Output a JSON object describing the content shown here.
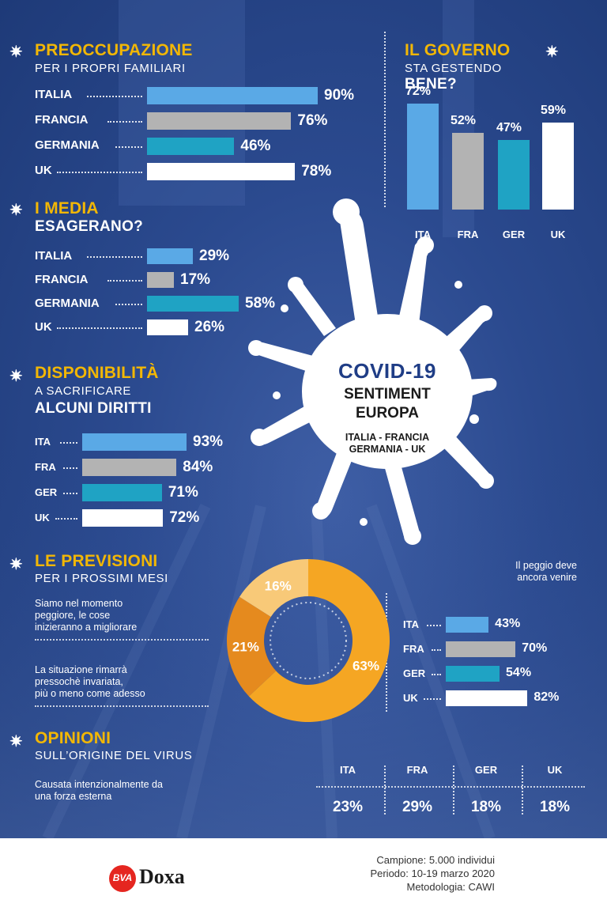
{
  "colors": {
    "ita": "#5aa9e6",
    "fra": "#b3b3b3",
    "ger": "#1fa3c4",
    "uk": "#ffffff",
    "accent": "#f2b705",
    "donut_main": "#f5a623",
    "donut_mid": "#e58a1e",
    "donut_light": "#f8c978"
  },
  "sections": {
    "preoccupazione": {
      "title": "PREOCCUPAZIONE",
      "subtitle": "PER I PROPRI FAMILIARI"
    },
    "governo": {
      "title": "IL GOVERNO",
      "subtitle": "STA GESTENDO",
      "subtitle_bold": "BENE?"
    },
    "media": {
      "title": "I MEDIA",
      "subtitle_bold": "ESAGERANO?"
    },
    "disponibilita": {
      "title": "DISPONIBILITÀ",
      "subtitle": "A SACRIFICARE",
      "subtitle_bold": "ALCUNI DIRITTI"
    },
    "previsioni": {
      "title": "LE PREVISIONI",
      "subtitle": "PER I PROSSIMI MESI"
    },
    "opinioni": {
      "title": "OPINIONI",
      "subtitle": "SULL’ORIGINE DEL VIRUS"
    }
  },
  "center": {
    "line1": "COVID-19",
    "line2": "SENTIMENT",
    "line3": "EUROPA",
    "line4": "ITALIA - FRANCIA",
    "line5": "GERMANIA - UK"
  },
  "chart_data": [
    {
      "id": "preoccupazione",
      "type": "bar",
      "orientation": "horizontal",
      "categories": [
        "ITALIA",
        "FRANCIA",
        "GERMANIA",
        "UK"
      ],
      "values": [
        90,
        76,
        46,
        78
      ],
      "labels": [
        "90%",
        "76%",
        "46%",
        "78%"
      ],
      "xlim": [
        0,
        100
      ]
    },
    {
      "id": "governo",
      "type": "bar",
      "orientation": "vertical",
      "categories": [
        "ITA",
        "FRA",
        "GER",
        "UK"
      ],
      "values": [
        72,
        52,
        47,
        59
      ],
      "labels": [
        "72%",
        "52%",
        "47%",
        "59%"
      ],
      "ylim": [
        0,
        100
      ]
    },
    {
      "id": "media",
      "type": "bar",
      "orientation": "horizontal",
      "categories": [
        "ITALIA",
        "FRANCIA",
        "GERMANIA",
        "UK"
      ],
      "values": [
        29,
        17,
        58,
        26
      ],
      "labels": [
        "29%",
        "17%",
        "58%",
        "26%"
      ],
      "xlim": [
        0,
        100
      ]
    },
    {
      "id": "disponibilita",
      "type": "bar",
      "orientation": "horizontal",
      "categories": [
        "ITA",
        "FRA",
        "GER",
        "UK"
      ],
      "values": [
        93,
        84,
        71,
        72
      ],
      "labels": [
        "93%",
        "84%",
        "71%",
        "72%"
      ],
      "xlim": [
        0,
        100
      ]
    },
    {
      "id": "previsioni",
      "type": "pie",
      "values": [
        63,
        21,
        16
      ],
      "labels": [
        "63%",
        "21%",
        "16%"
      ],
      "annotations": [
        "Siamo nel momento peggiore, le cose inizieranno a migliorare",
        "La situazione rimarrà pressochè invariata, più o meno come adesso",
        "Il peggio deve ancora venire"
      ]
    },
    {
      "id": "peggio",
      "type": "bar",
      "orientation": "horizontal",
      "categories": [
        "ITA",
        "FRA",
        "GER",
        "UK"
      ],
      "values": [
        43,
        70,
        54,
        82
      ],
      "labels": [
        "43%",
        "70%",
        "54%",
        "82%"
      ],
      "xlim": [
        0,
        100
      ]
    },
    {
      "id": "opinioni",
      "type": "table",
      "row_label": "Causata intenzionalmente da una forza esterna",
      "columns": [
        "ITA",
        "FRA",
        "GER",
        "UK"
      ],
      "values": [
        23,
        29,
        18,
        18
      ],
      "labels": [
        "23%",
        "29%",
        "18%",
        "18%"
      ]
    }
  ],
  "notes": {
    "peggio_line1": "Il peggio deve",
    "peggio_line2": "ancora venire",
    "migliorare_line1": "Siamo nel momento",
    "migliorare_line2": "peggiore, le cose",
    "migliorare_line3": "inizieranno a migliorare",
    "invariata_line1": "La situazione rimarrà",
    "invariata_line2": "pressochè invariata,",
    "invariata_line3": "più o meno come adesso",
    "opinioni_line1": "Causata intenzionalmente da",
    "opinioni_line2": "una forza esterna"
  },
  "footer": {
    "logo_bva": "BVA",
    "logo_doxa": "Doxa",
    "campione": "Campione:  5.000 individui",
    "periodo": "Periodo:  10-19 marzo 2020",
    "metodologia": "Metodologia:  CAWI"
  }
}
